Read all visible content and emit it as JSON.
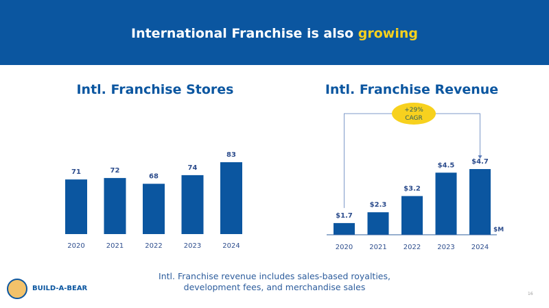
{
  "header": {
    "title_main": "International Franchise is also",
    "title_highlight": "growing"
  },
  "footer": {
    "note_line1": "Intl. Franchise revenue includes sales-based royalties,",
    "note_line2": "development fees, and merchandise sales",
    "brand": "BUILD-A-BEAR",
    "page_number": "16"
  },
  "colors": {
    "bar": "#0B56A0",
    "accent": "#F7D11E",
    "header": "#0B56A0"
  },
  "chart_data": [
    {
      "type": "bar",
      "title": "Intl. Franchise Stores",
      "categories": [
        "2020",
        "2021",
        "2022",
        "2023",
        "2024"
      ],
      "values": [
        71,
        72,
        68,
        74,
        83
      ],
      "labels": [
        "71",
        "72",
        "68",
        "74",
        "83"
      ],
      "ylim": [
        33,
        85
      ]
    },
    {
      "type": "bar",
      "title": "Intl. Franchise Revenue",
      "categories": [
        "2020",
        "2021",
        "2022",
        "2023",
        "2024"
      ],
      "values": [
        1.7,
        2.3,
        3.2,
        4.5,
        4.7
      ],
      "labels": [
        "$1.7",
        "$2.3",
        "$3.2",
        "$4.5",
        "$4.7"
      ],
      "unit": "$M",
      "ylim": [
        1.05,
        5
      ],
      "annotation": {
        "line1": "+29%",
        "line2": "CAGR"
      }
    }
  ]
}
